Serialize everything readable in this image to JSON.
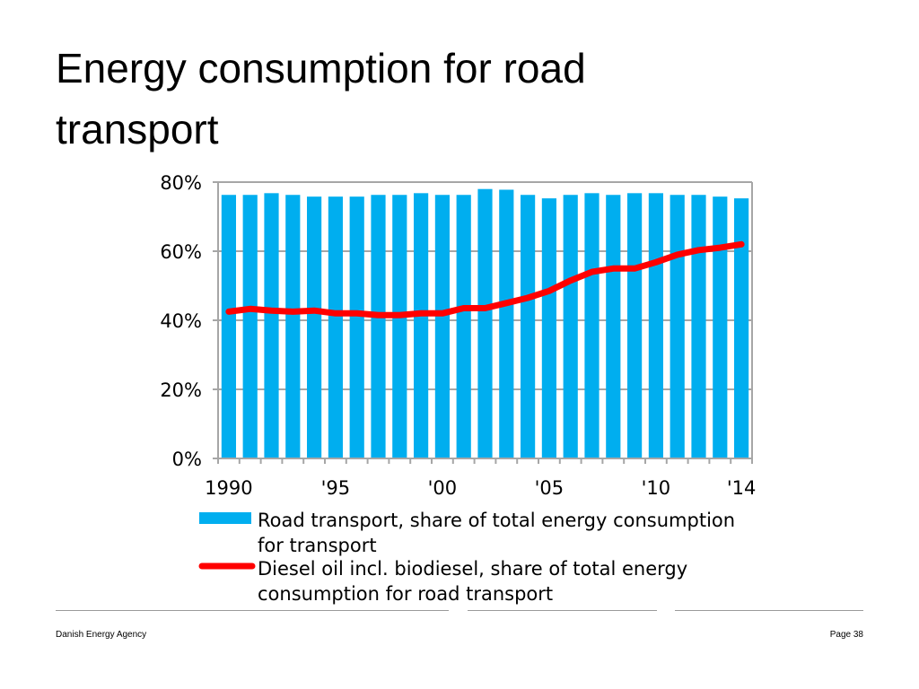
{
  "slide": {
    "title": "Energy consumption for road transport",
    "footer_left": "Danish Energy Agency",
    "footer_right": "Page 38"
  },
  "colors": {
    "bar": "#00AEEF",
    "line": "#FF0000",
    "grid": "#A6A6A6"
  },
  "chart_data": {
    "type": "bar",
    "title": "",
    "xlabel": "",
    "ylabel": "",
    "ylim": [
      0,
      80
    ],
    "y_unit": "%",
    "y_ticks": [
      0,
      20,
      40,
      60,
      80
    ],
    "y_tick_labels": [
      "0%",
      "20%",
      "40%",
      "60%",
      "80%"
    ],
    "x_tick_labels": [
      "1990",
      "'95",
      "'00",
      "'05",
      "'10",
      "'14"
    ],
    "grid": true,
    "legend_placement": "bottom",
    "categories": [
      "1990",
      "1991",
      "1992",
      "1993",
      "1994",
      "1995",
      "1996",
      "1997",
      "1998",
      "1999",
      "2000",
      "2001",
      "2002",
      "2003",
      "2004",
      "2005",
      "2006",
      "2007",
      "2008",
      "2009",
      "2010",
      "2011",
      "2012",
      "2013",
      "2014"
    ],
    "series": [
      {
        "name": "Road transport, share of total energy consumption for transport",
        "type": "bar",
        "values": [
          76.3,
          76.3,
          76.8,
          76.3,
          75.8,
          75.8,
          75.8,
          76.3,
          76.3,
          76.8,
          76.3,
          76.3,
          78.0,
          77.8,
          76.3,
          75.3,
          76.3,
          76.8,
          76.3,
          76.8,
          76.8,
          76.3,
          76.3,
          75.8,
          75.3
        ]
      },
      {
        "name": "Diesel oil incl. biodiesel, share of total energy consumption for road transport",
        "type": "line",
        "values": [
          42.5,
          43.3,
          42.8,
          42.5,
          42.8,
          42.0,
          42.0,
          41.5,
          41.5,
          42.0,
          42.0,
          43.5,
          43.5,
          45.0,
          46.5,
          48.5,
          51.5,
          54.0,
          55.0,
          55.0,
          56.8,
          59.0,
          60.3,
          61.0,
          62.0
        ]
      }
    ]
  }
}
